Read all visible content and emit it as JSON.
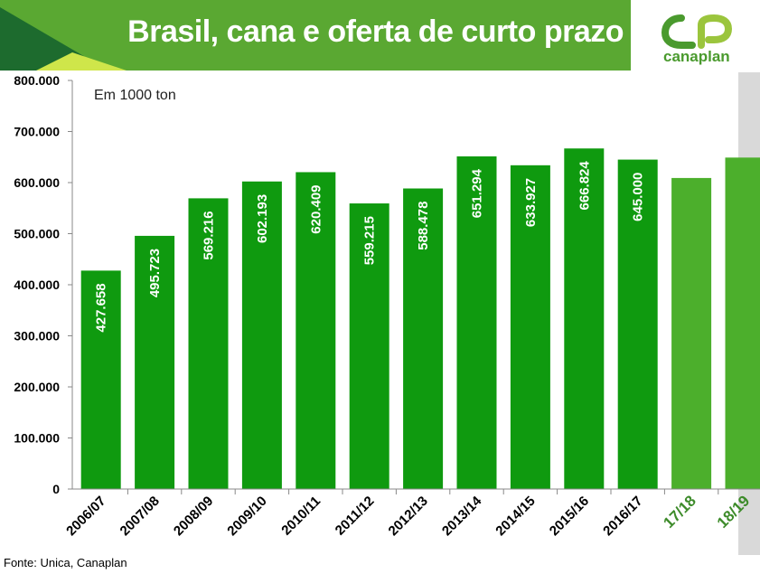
{
  "header": {
    "title": "Brasil, cana e oferta de curto prazo"
  },
  "logo": {
    "text": "canaplan"
  },
  "footer": {
    "source": "Fonte: Unica, Canaplan"
  },
  "colors": {
    "header_green": "#5aa832",
    "bar_green": "#0f9a0f",
    "projection_green": "#4caf2c",
    "projection_label": "#3d8b2a",
    "shade_gray": "#d9d9d9",
    "deco_dark": "#1d6b2e",
    "deco_yellow": "#cfe64a"
  },
  "chart_data": {
    "type": "bar",
    "annotation": "Em 1000 ton",
    "ylim": [
      0,
      800000
    ],
    "y_ticks": [
      0,
      100000,
      200000,
      300000,
      400000,
      500000,
      600000,
      700000,
      800000
    ],
    "y_tick_labels": [
      "0",
      "100.000",
      "200.000",
      "300.000",
      "400.000",
      "500.000",
      "600.000",
      "700.000",
      "800.000"
    ],
    "categories": [
      "2006/07",
      "2007/08",
      "2008/09",
      "2009/10",
      "2010/11",
      "2011/12",
      "2012/13",
      "2013/14",
      "2014/15",
      "2015/16",
      "2016/17",
      "17/18",
      "18/19"
    ],
    "values": [
      427658,
      495723,
      569216,
      602193,
      620409,
      559215,
      588478,
      651294,
      633927,
      666824,
      645000,
      609000,
      649000
    ],
    "value_labels": [
      "427.658",
      "495.723",
      "569.216",
      "602.193",
      "620.409",
      "559.215",
      "588.478",
      "651.294",
      "633.927",
      "666.824",
      "645.000",
      "",
      ""
    ],
    "projected": [
      false,
      false,
      false,
      false,
      false,
      false,
      false,
      false,
      false,
      false,
      false,
      true,
      true
    ],
    "grid": false,
    "legend": "none"
  }
}
